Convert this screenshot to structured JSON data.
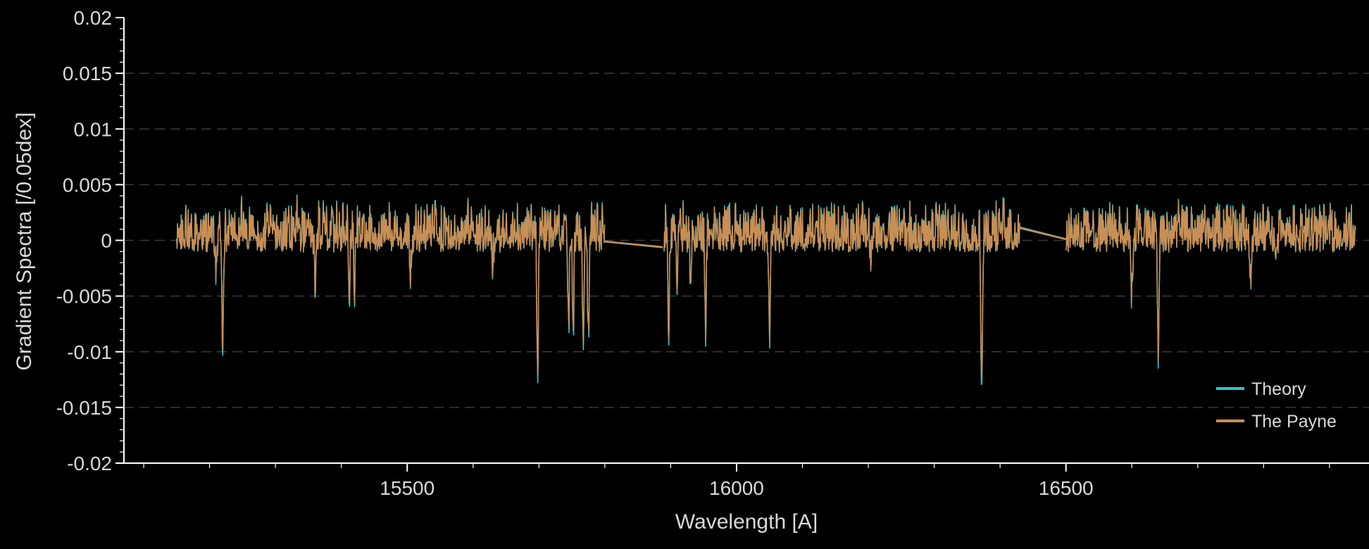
{
  "chart_data": {
    "type": "line",
    "title": "",
    "xlabel": "Wavelength [A]",
    "ylabel": "Gradient Spectra [/0.05dex]",
    "xlim": [
      15070,
      16960
    ],
    "ylim": [
      -0.02,
      0.02
    ],
    "x_ticks": [
      {
        "value": 15500,
        "label": "15500"
      },
      {
        "value": 16000,
        "label": "16000"
      },
      {
        "value": 16500,
        "label": "16500"
      }
    ],
    "y_ticks": [
      {
        "value": 0.02,
        "label": "0.02"
      },
      {
        "value": 0.015,
        "label": "0.015"
      },
      {
        "value": 0.01,
        "label": "0.01"
      },
      {
        "value": 0.005,
        "label": "0.005"
      },
      {
        "value": 0,
        "label": "0"
      },
      {
        "value": -0.005,
        "label": "-0.005"
      },
      {
        "value": -0.01,
        "label": "-0.01"
      },
      {
        "value": -0.015,
        "label": "-0.015"
      },
      {
        "value": -0.02,
        "label": "-0.02"
      }
    ],
    "grid": "horizontal dashed",
    "legend_position": "bottom-right",
    "series": [
      {
        "name": "Theory",
        "color": "#2fc3cc",
        "offset_scale": 1.06
      },
      {
        "name": "The Payne",
        "color": "#c98e54",
        "offset_scale": 1.0
      }
    ],
    "spectral_chips": [
      {
        "start": 15150,
        "end": 15800
      },
      {
        "start": 15890,
        "end": 16430
      },
      {
        "start": 16500,
        "end": 16940
      }
    ],
    "gap_connectors": [
      {
        "x": [
          15800,
          15888
        ],
        "y": [
          -0.0001,
          -0.0006
        ]
      },
      {
        "x": [
          16430,
          16500
        ],
        "y": [
          0.0011,
          0.0001
        ]
      }
    ],
    "noise_band": {
      "low": -0.001,
      "high": 0.0035
    },
    "peaks": [
      {
        "x": 15185,
        "y": 0.0038
      },
      {
        "x": 15248,
        "y": 0.0045
      },
      {
        "x": 15290,
        "y": 0.0048
      },
      {
        "x": 15333,
        "y": 0.0047
      },
      {
        "x": 15408,
        "y": 0.0042
      },
      {
        "x": 15470,
        "y": 0.0045
      },
      {
        "x": 15544,
        "y": 0.0043
      },
      {
        "x": 15593,
        "y": 0.004
      },
      {
        "x": 15778,
        "y": 0.004
      },
      {
        "x": 15912,
        "y": 0.004
      },
      {
        "x": 16000,
        "y": 0.0047
      },
      {
        "x": 16190,
        "y": 0.0047
      },
      {
        "x": 16406,
        "y": 0.005
      },
      {
        "x": 16670,
        "y": 0.0033
      },
      {
        "x": 16930,
        "y": 0.0033
      }
    ],
    "absorption_features": [
      {
        "x": 15220,
        "depth": -0.0102
      },
      {
        "x": 15210,
        "depth": -0.004
      },
      {
        "x": 15360,
        "depth": -0.0045
      },
      {
        "x": 15412,
        "depth": -0.006
      },
      {
        "x": 15420,
        "depth": -0.005
      },
      {
        "x": 15505,
        "depth": -0.0032
      },
      {
        "x": 15630,
        "depth": -0.0025
      },
      {
        "x": 15698,
        "depth": -0.0126
      },
      {
        "x": 15745,
        "depth": -0.0085
      },
      {
        "x": 15752,
        "depth": -0.0088
      },
      {
        "x": 15767,
        "depth": -0.0097
      },
      {
        "x": 15775,
        "depth": -0.01
      },
      {
        "x": 15887,
        "depth": -0.0087
      },
      {
        "x": 15897,
        "depth": -0.0085
      },
      {
        "x": 15910,
        "depth": -0.005
      },
      {
        "x": 15930,
        "depth": -0.004
      },
      {
        "x": 15953,
        "depth": -0.0089
      },
      {
        "x": 16050,
        "depth": -0.0092
      },
      {
        "x": 16203,
        "depth": -0.0025
      },
      {
        "x": 16372,
        "depth": -0.0138
      },
      {
        "x": 16600,
        "depth": -0.0057
      },
      {
        "x": 16640,
        "depth": -0.0105
      },
      {
        "x": 16780,
        "depth": -0.0045
      },
      {
        "x": 16820,
        "depth": -0.0028
      }
    ]
  }
}
